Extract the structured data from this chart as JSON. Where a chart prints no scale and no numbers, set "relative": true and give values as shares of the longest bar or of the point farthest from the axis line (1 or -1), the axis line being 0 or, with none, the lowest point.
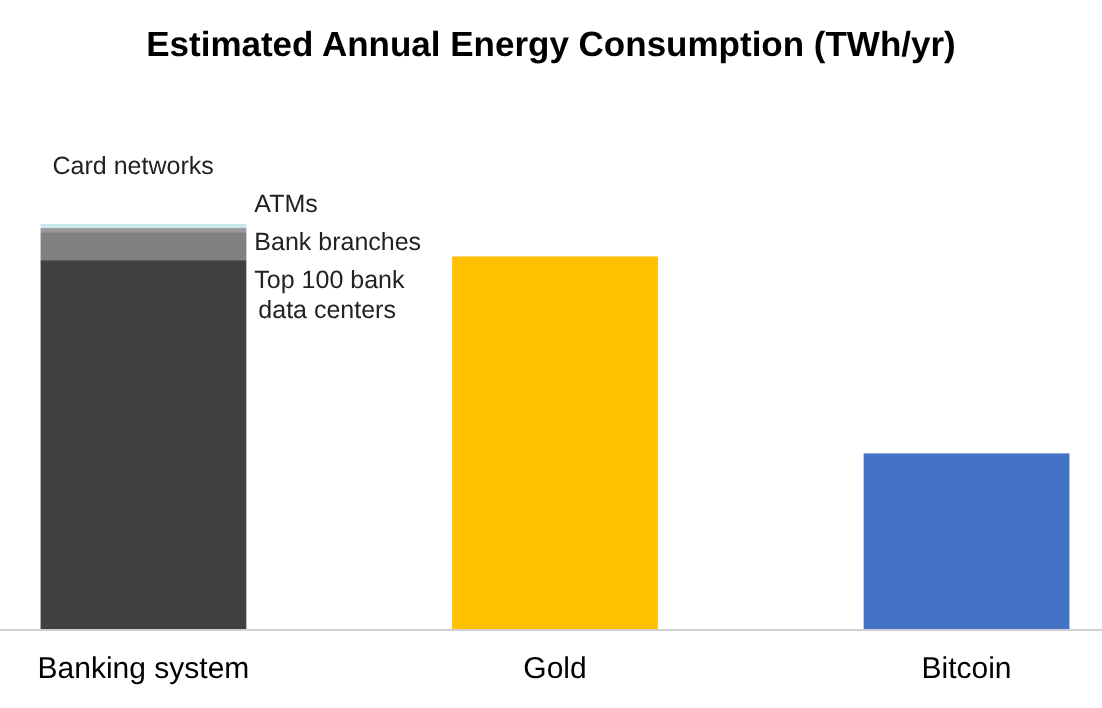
{
  "chart_data": {
    "type": "bar",
    "title": "Estimated Annual Energy Consumption (TWh/yr)",
    "relative": true,
    "stacked": true,
    "categories": [
      "Banking system",
      "Gold",
      "Bitcoin"
    ],
    "series": [
      {
        "values": [
          null,
          0.92,
          0.435
        ],
        "colors": [
          null,
          "#ffc000",
          "#4472c4"
        ]
      },
      {
        "name": "Top 100 bank data centers",
        "color": "#404040",
        "values": [
          0.911,
          null,
          null
        ]
      },
      {
        "name": "Bank branches",
        "color": "#808080",
        "values": [
          0.069,
          null,
          null
        ]
      },
      {
        "name": "ATMs",
        "color": "#999999",
        "values": [
          0.01,
          null,
          null
        ]
      },
      {
        "name": "Card networks",
        "color": "#c8e8ec",
        "values": [
          0.01,
          null,
          null
        ]
      }
    ]
  }
}
